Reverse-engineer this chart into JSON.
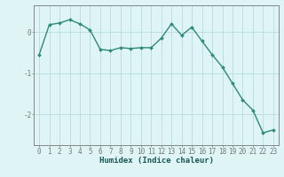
{
  "x": [
    0,
    1,
    2,
    3,
    4,
    5,
    6,
    7,
    8,
    9,
    10,
    11,
    12,
    13,
    14,
    15,
    16,
    17,
    18,
    19,
    20,
    21,
    22,
    23
  ],
  "y": [
    -0.55,
    0.18,
    0.22,
    0.3,
    0.2,
    0.05,
    -0.42,
    -0.45,
    -0.38,
    -0.4,
    -0.38,
    -0.38,
    -0.15,
    0.2,
    -0.08,
    0.12,
    -0.22,
    -0.55,
    -0.85,
    -1.25,
    -1.65,
    -1.9,
    -2.45,
    -2.38
  ],
  "line_color": "#2e8b74",
  "marker": "D",
  "marker_size": 2.0,
  "linewidth": 1.0,
  "xlabel": "Humidex (Indice chaleur)",
  "xlabel_fontsize": 6.5,
  "xlabel_fontweight": "bold",
  "bg_color": "#dff4f4",
  "grid_color": "#b8dcdc",
  "axis_color": "#777777",
  "ylim": [
    -2.75,
    0.65
  ],
  "xlim": [
    -0.5,
    23.5
  ],
  "yticks": [
    0,
    -1,
    -2
  ],
  "ytick_labels": [
    "0",
    "-1",
    "-2"
  ],
  "xticks": [
    0,
    1,
    2,
    3,
    4,
    5,
    6,
    7,
    8,
    9,
    10,
    11,
    12,
    13,
    14,
    15,
    16,
    17,
    18,
    19,
    20,
    21,
    22,
    23
  ],
  "tick_fontsize": 5.5
}
